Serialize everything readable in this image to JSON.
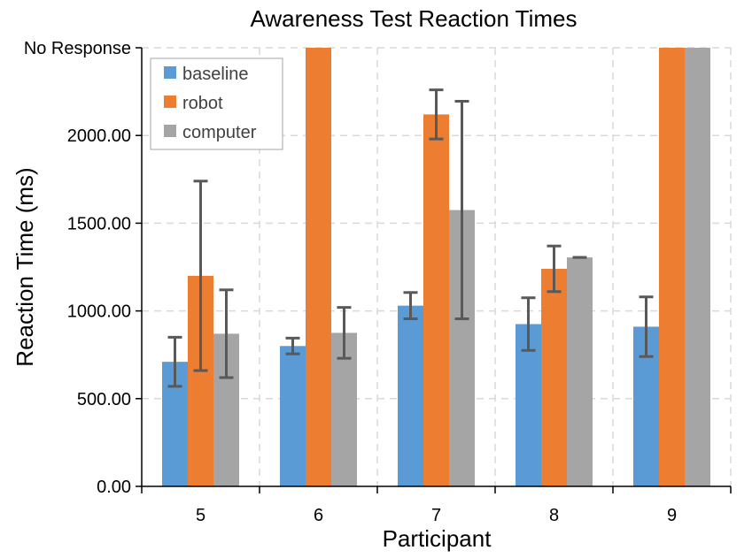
{
  "chart_data": {
    "type": "bar",
    "title": "Awareness Test Reaction Times",
    "xlabel": "Participant",
    "ylabel": "Reaction Time (ms)",
    "categories": [
      "5",
      "6",
      "7",
      "8",
      "9"
    ],
    "ylim": [
      0,
      2500
    ],
    "yticks": [
      {
        "value": 0,
        "label": "0.00"
      },
      {
        "value": 500,
        "label": "500.00"
      },
      {
        "value": 1000,
        "label": "1000.00"
      },
      {
        "value": 1500,
        "label": "1500.00"
      },
      {
        "value": 2000,
        "label": "2000.00"
      },
      {
        "value": 2500,
        "label": "No Response"
      }
    ],
    "series": [
      {
        "name": "baseline",
        "color": "#5B9BD5",
        "values": [
          710,
          800,
          1030,
          925,
          910
        ],
        "error": [
          140,
          45,
          75,
          150,
          170
        ]
      },
      {
        "name": "robot",
        "color": "#ED7D31",
        "values": [
          1200,
          2500,
          2120,
          1240,
          2500
        ],
        "error": [
          540,
          0,
          140,
          130,
          0
        ]
      },
      {
        "name": "computer",
        "color": "#A5A5A5",
        "values": [
          870,
          875,
          1575,
          1305,
          2500
        ],
        "error": [
          250,
          145,
          620,
          0,
          0
        ]
      }
    ],
    "grid": true,
    "legend": "top-left",
    "error_bar_color": "#595959",
    "grid_color": "#D9D9D9"
  }
}
